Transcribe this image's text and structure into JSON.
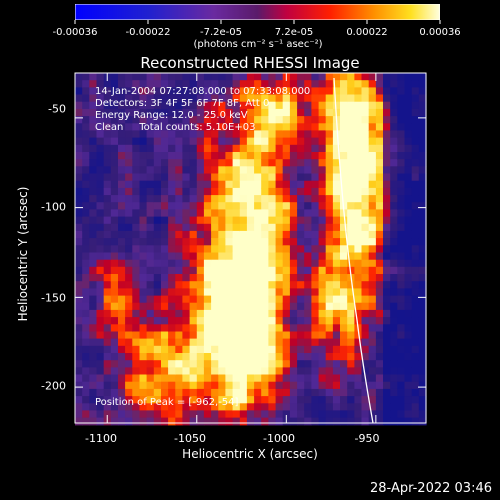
{
  "colorbar": {
    "ticks": [
      "-0.00036",
      "-0.00022",
      "-7.2e-05",
      "7.2e-05",
      "0.00022",
      "0.00036"
    ],
    "units": "(photons cm⁻² s⁻¹ asec⁻²)"
  },
  "chart_data": {
    "type": "heatmap",
    "title": "Reconstructed RHESSI Image",
    "xlabel": "Heliocentric X (arcsec)",
    "ylabel": "Heliocentric Y (arcsec)",
    "xlim": [
      -1118,
      -922
    ],
    "ylim": [
      -220,
      -25
    ],
    "xticks": [
      "-1100",
      "-1050",
      "-1000",
      "-950"
    ],
    "xtick_values": [
      -1100,
      -1050,
      -1000,
      -950
    ],
    "yticks": [
      "-50",
      "-100",
      "-150",
      "-200"
    ],
    "ytick_values": [
      -50,
      -100,
      -150,
      -200
    ],
    "colorscale": "rainbow (blue-purple-red-orange-yellow-white)",
    "zlim": [
      -0.00036,
      0.00036
    ],
    "annotations": [
      "14-Jan-2004 07:27:08.000 to 07:33:08.000",
      "Detectors: 3F 4F 5F 6F 7F 8F, Att 0",
      "Energy Range: 12.0 - 25.0 keV",
      "Clean     Total counts: 5.10E+03"
    ],
    "peak_label": "Position of Peak = [-962,-54]",
    "limb_line": true,
    "grid": false
  },
  "footer": "28-Apr-2022 03:46"
}
